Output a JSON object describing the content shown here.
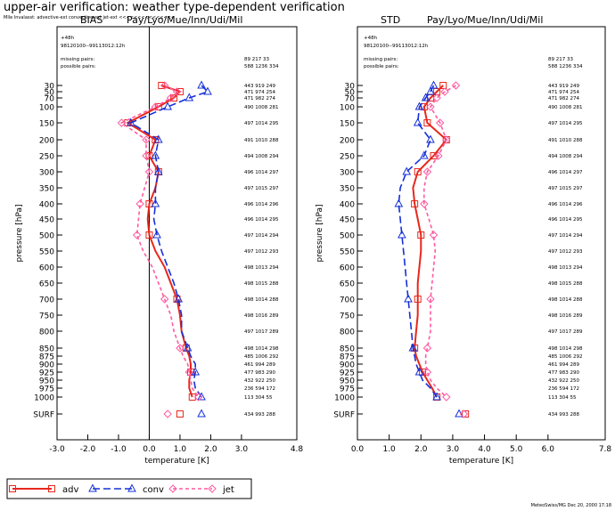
{
  "header": {
    "title": "upper-air verification: weather type-dependent verification",
    "subtitle": "Mlle Invalasst: advective-ext convective-ext jet-ext <<<<<<<<<<<<<<<"
  },
  "footer": {
    "credit": "MeteoSwiss/MG Dec 20, 2000 17:18"
  },
  "legend": [
    {
      "key": "adv",
      "label": "adv",
      "color": "#e8271c",
      "marker": "square",
      "dash": "solid"
    },
    {
      "key": "conv",
      "label": "conv",
      "color": "#1530d8",
      "marker": "triangle",
      "dash": "long"
    },
    {
      "key": "jet",
      "label": "jet",
      "color": "#ff5aa0",
      "marker": "diamond",
      "dash": "short"
    }
  ],
  "colors": {
    "adv": "#e8271c",
    "conv": "#1530d8",
    "jet": "#ff5aa0"
  },
  "chart_data": [
    {
      "type": "line",
      "title_left": "BIAS",
      "title_right": "Pay/Lyo/Mue/Inn/Udi/Mil",
      "info_line1": "+48h",
      "info_line2": "98120100--99113012:12h",
      "missing_label": "missing pairs:",
      "possible_label": "possible pairs:",
      "missing_counts": "89   217   33",
      "possible_counts": "588  1236 334",
      "ylabel": "pressure  [hPa]",
      "xlabel": "temperature  [K]",
      "xlim": [
        -3.0,
        4.8
      ],
      "xticks": [
        -3.0,
        -2.0,
        -1.0,
        0.0,
        1.0,
        2.0,
        3.0,
        4.8
      ],
      "xtick_labels": [
        "-3.0",
        "-2.0",
        "-1.0",
        "0.0",
        "1.0",
        "2.0",
        "3.0",
        "4.8"
      ],
      "zero_line": true,
      "levels": [
        "30",
        "50",
        "70",
        "100",
        "150",
        "200",
        "250",
        "300",
        "350",
        "400",
        "450",
        "500",
        "550",
        "600",
        "650",
        "700",
        "750",
        "800",
        "850",
        "875",
        "900",
        "925",
        "950",
        "975",
        "1000",
        "SURF"
      ],
      "counts": [
        "443  919  249",
        "471  974  254",
        "471  982  274",
        "490  1008 281",
        "497  1014 295",
        "491  1010 288",
        "494  1008 294",
        "496  1014 297",
        "497  1015 297",
        "496  1014 296",
        "496  1014 295",
        "497  1014 294",
        "497  1012 293",
        "498  1013 294",
        "498  1015 288",
        "498  1014 288",
        "498  1016 289",
        "497  1017 289",
        "498  1014 298",
        "485  1006 292",
        "461  994  289",
        "477  983  290",
        "432  922  250",
        "236  594  172",
        "113  304  55",
        "434  993  288"
      ],
      "series": [
        {
          "name": "adv",
          "values": [
            0.4,
            1.0,
            0.8,
            0.3,
            -0.7,
            0.2,
            0.0,
            0.3,
            0.2,
            0.0,
            -0.05,
            0.0,
            0.2,
            0.5,
            0.7,
            0.9,
            1.0,
            1.05,
            1.2,
            1.3,
            1.35,
            1.35,
            1.3,
            1.3,
            1.4,
            1.0
          ]
        },
        {
          "name": "conv",
          "values": [
            1.7,
            1.9,
            1.3,
            0.6,
            -0.6,
            0.3,
            0.2,
            0.3,
            0.2,
            0.2,
            0.15,
            0.25,
            0.4,
            0.6,
            0.8,
            0.95,
            1.05,
            1.05,
            1.25,
            1.35,
            1.5,
            1.5,
            1.45,
            1.5,
            1.7,
            1.7
          ]
        },
        {
          "name": "jet",
          "values": [
            0.5,
            0.9,
            0.7,
            0.2,
            -0.9,
            -0.1,
            -0.1,
            0.0,
            -0.15,
            -0.3,
            -0.35,
            -0.4,
            -0.2,
            0.1,
            0.3,
            0.5,
            0.7,
            0.8,
            1.0,
            1.1,
            1.25,
            1.3,
            1.35,
            1.4,
            1.6,
            0.6
          ]
        }
      ]
    },
    {
      "type": "line",
      "title_left": "STD",
      "title_right": "Pay/Lyo/Mue/Inn/Udi/Mil",
      "info_line1": "+48h",
      "info_line2": "98120100--99113012:12h",
      "missing_label": "missing pairs:",
      "possible_label": "possible pairs:",
      "missing_counts": "89   217   33",
      "possible_counts": "588  1236 334",
      "ylabel": "pressure  [hPa]",
      "xlabel": "temperature  [K]",
      "xlim": [
        0.0,
        7.8
      ],
      "xticks": [
        0.0,
        1.0,
        2.0,
        3.0,
        4.0,
        5.0,
        6.0,
        7.8
      ],
      "xtick_labels": [
        "0.0",
        "1.0",
        "2.0",
        "3.0",
        "4.0",
        "5.0",
        "6.0",
        "7.8"
      ],
      "zero_line": false,
      "levels": [
        "30",
        "50",
        "70",
        "100",
        "150",
        "200",
        "250",
        "300",
        "350",
        "400",
        "450",
        "500",
        "550",
        "600",
        "650",
        "700",
        "750",
        "800",
        "850",
        "875",
        "900",
        "925",
        "950",
        "975",
        "1000",
        "SURF"
      ],
      "counts": [
        "443  919  249",
        "471  974  254",
        "471  982  274",
        "490  1008 281",
        "497  1014 295",
        "491  1010 288",
        "494  1008 294",
        "496  1014 297",
        "497  1015 297",
        "496  1014 296",
        "496  1014 295",
        "497  1014 294",
        "497  1012 293",
        "498  1013 294",
        "498  1015 288",
        "498  1014 288",
        "498  1016 289",
        "497  1017 289",
        "498  1014 298",
        "485  1006 292",
        "461  994  289",
        "477  983  290",
        "432  922  250",
        "236  594  172",
        "113  304  55",
        "434  993  288"
      ],
      "series": [
        {
          "name": "adv",
          "values": [
            2.7,
            2.5,
            2.3,
            2.1,
            2.2,
            2.8,
            2.4,
            1.9,
            1.75,
            1.8,
            1.9,
            2.0,
            2.0,
            1.95,
            1.9,
            1.9,
            1.9,
            1.85,
            1.8,
            1.85,
            1.95,
            2.05,
            2.2,
            2.35,
            2.5,
            3.4
          ]
        },
        {
          "name": "conv",
          "values": [
            2.4,
            2.3,
            2.15,
            1.95,
            1.9,
            2.3,
            2.1,
            1.55,
            1.35,
            1.3,
            1.35,
            1.4,
            1.45,
            1.5,
            1.55,
            1.6,
            1.65,
            1.7,
            1.75,
            1.8,
            1.85,
            1.95,
            2.05,
            2.3,
            2.5,
            3.2
          ]
        },
        {
          "name": "jet",
          "values": [
            3.1,
            2.75,
            2.5,
            2.3,
            2.6,
            2.8,
            2.55,
            2.2,
            2.1,
            2.1,
            2.25,
            2.4,
            2.45,
            2.4,
            2.35,
            2.3,
            2.3,
            2.3,
            2.2,
            2.15,
            2.15,
            2.2,
            2.3,
            2.5,
            2.8,
            3.35
          ]
        }
      ]
    }
  ]
}
